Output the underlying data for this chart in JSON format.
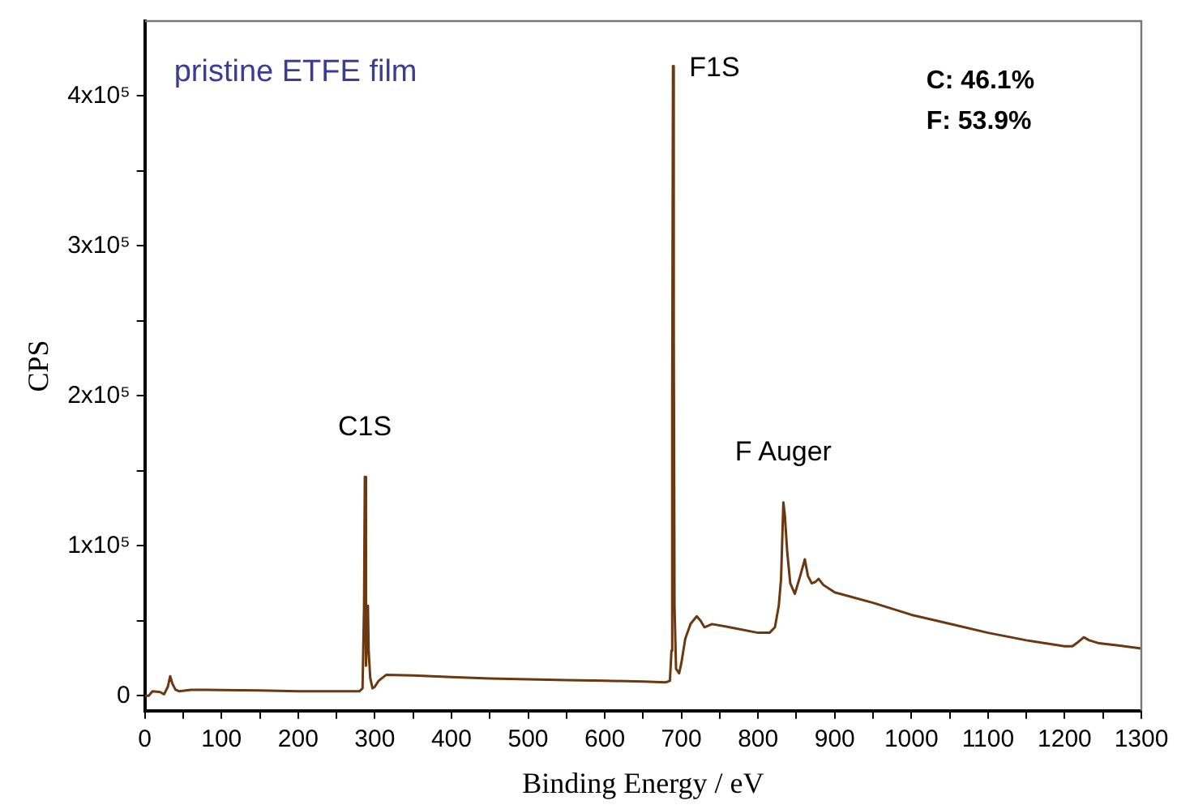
{
  "chart_data": {
    "type": "line",
    "xlabel": "Binding Energy / eV",
    "ylabel": "CPS",
    "xlim": [
      0,
      1300
    ],
    "xticks": [
      0,
      {
        "value": 50,
        "label": null
      },
      100,
      {
        "value": 150,
        "label": null
      },
      200,
      {
        "value": 250,
        "label": null
      },
      300,
      {
        "value": 350,
        "label": null
      },
      400,
      {
        "value": 450,
        "label": null
      },
      500,
      {
        "value": 550,
        "label": null
      },
      600,
      {
        "value": 650,
        "label": null
      },
      700,
      {
        "value": 750,
        "label": null
      },
      800,
      {
        "value": 850,
        "label": null
      },
      900,
      {
        "value": 950,
        "label": null
      },
      1000,
      {
        "value": 1050,
        "label": null
      },
      1100,
      {
        "value": 1150,
        "label": null
      },
      1200,
      {
        "value": 1250,
        "label": null
      },
      1300
    ],
    "ylim": [
      -10000,
      450000
    ],
    "yticks": [
      0,
      {
        "value": 50000,
        "label": null
      },
      {
        "value": 100000,
        "label": "1x10⁵"
      },
      {
        "value": 150000,
        "label": null
      },
      {
        "value": 200000,
        "label": "2x10⁵"
      },
      {
        "value": 250000,
        "label": null
      },
      {
        "value": 300000,
        "label": "3x10⁵"
      },
      {
        "value": 350000,
        "label": null
      },
      {
        "value": 400000,
        "label": "4x10⁵"
      }
    ],
    "grid": false,
    "legend": false,
    "annotations": [
      "pristine ETFE film",
      "C: 46.1%",
      "F: 53.9%",
      {
        "text": "C1S",
        "x": 287,
        "y": 146000
      },
      {
        "text": "F1S",
        "x": 689,
        "y": 420000
      },
      {
        "text": "F Auger",
        "x": 833,
        "y": 129000
      }
    ],
    "series": [
      {
        "color": "#6b3810",
        "x": [
          0,
          5,
          10,
          20,
          25,
          30,
          33,
          36,
          40,
          45,
          60,
          100,
          150,
          200,
          250,
          280,
          284,
          286,
          287,
          288,
          289,
          290,
          291,
          292,
          294,
          297,
          300,
          305,
          315,
          350,
          400,
          450,
          500,
          550,
          600,
          650,
          680,
          685,
          687,
          688,
          689,
          690,
          691,
          693,
          697,
          700,
          705,
          712,
          720,
          725,
          730,
          740,
          760,
          800,
          815,
          822,
          827,
          830,
          833,
          835,
          838,
          842,
          848,
          855,
          861,
          865,
          870,
          875,
          879,
          885,
          900,
          950,
          1000,
          1050,
          1100,
          1150,
          1200,
          1210,
          1218,
          1225,
          1232,
          1245,
          1270,
          1300
        ],
        "values": [
          0,
          0,
          3000,
          2500,
          1000,
          6000,
          13000,
          8000,
          4000,
          3000,
          4000,
          3800,
          3500,
          3000,
          3000,
          3000,
          5000,
          60000,
          146000,
          60000,
          20000,
          45000,
          60000,
          30000,
          12000,
          5000,
          6000,
          10000,
          14000,
          13500,
          12500,
          11500,
          11000,
          10500,
          10000,
          9500,
          9000,
          10000,
          30000,
          200000,
          420000,
          250000,
          60000,
          18000,
          15000,
          22000,
          38000,
          48000,
          53000,
          50000,
          45700,
          47800,
          46000,
          42000,
          42000,
          45700,
          60000,
          78000,
          129000,
          120000,
          96000,
          75000,
          68000,
          80000,
          91000,
          80000,
          75000,
          76000,
          78000,
          74000,
          69000,
          62000,
          54000,
          48000,
          42000,
          37000,
          33000,
          33000,
          36000,
          39000,
          37000,
          35000,
          33500,
          31500
        ]
      }
    ]
  }
}
